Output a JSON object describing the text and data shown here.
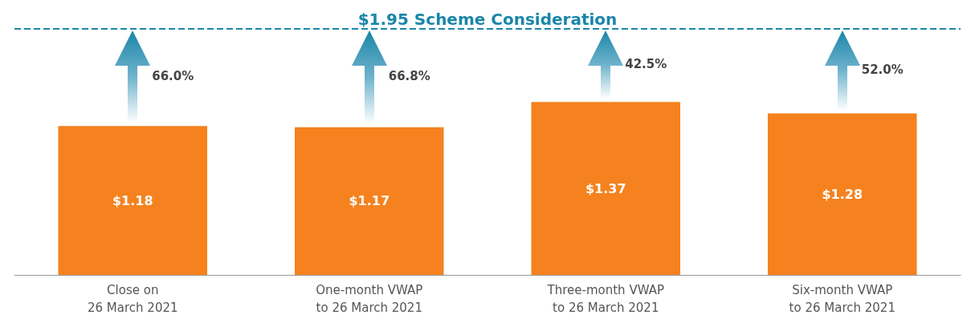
{
  "chart_data": {
    "type": "bar",
    "categories": [
      "Close on\n26 March 2021",
      "One-month VWAP\nto 26 March 2021",
      "Three-month VWAP\nto 26 March 2021",
      "Six-month VWAP\nto 26 March 2021"
    ],
    "values": [
      1.18,
      1.17,
      1.37,
      1.28
    ],
    "value_labels": [
      "$1.18",
      "$1.17",
      "$1.37",
      "$1.28"
    ],
    "color": "#f5821f",
    "ref_lines": [
      {
        "axis": "y",
        "value": 1.95,
        "label": "$1.95 Scheme Consideration",
        "color": "#1a86a8",
        "line_style": "dashed"
      }
    ],
    "annotations": [
      "66.0%",
      "66.8%",
      "42.5%",
      "52.0%"
    ]
  }
}
